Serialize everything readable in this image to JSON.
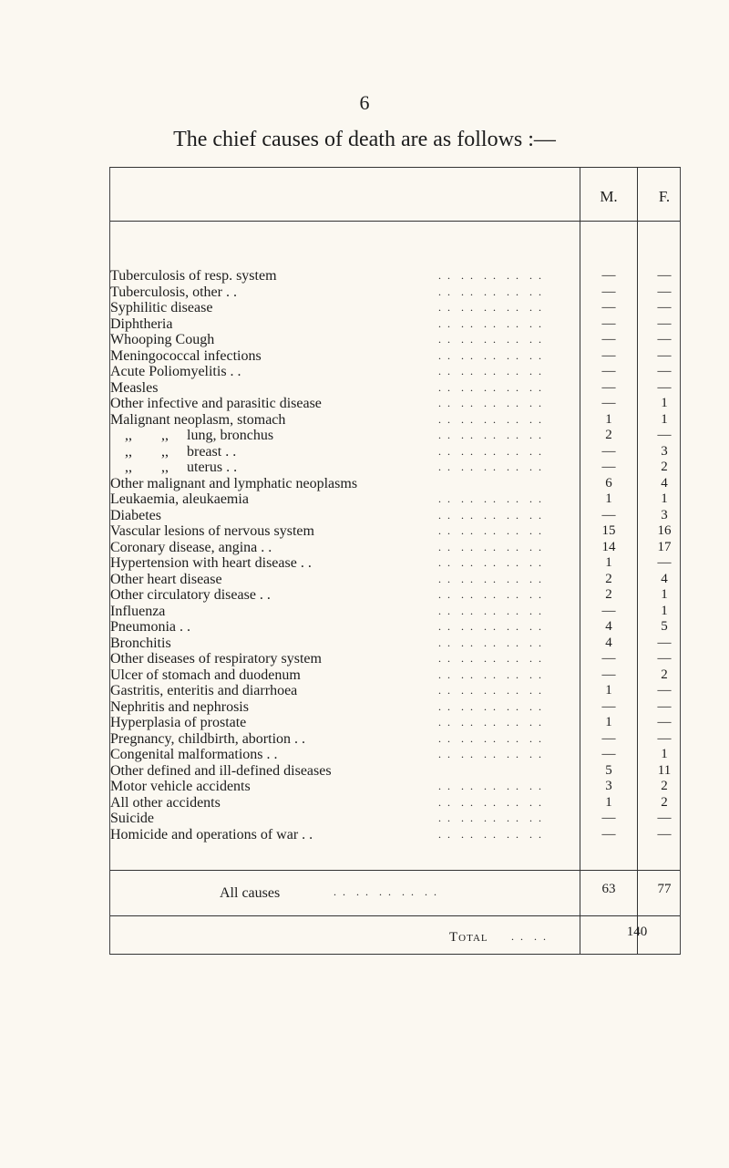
{
  "page_number": "6",
  "title": "The chief causes of death are as follows :—",
  "header": {
    "m": "M.",
    "f": "F."
  },
  "rows": [
    {
      "label": "Tuberculosis of resp. system",
      "m": "—",
      "f": "—"
    },
    {
      "label": "Tuberculosis, other . .",
      "m": "—",
      "f": "—"
    },
    {
      "label": "Syphilitic disease",
      "m": "—",
      "f": "—"
    },
    {
      "label": "Diphtheria",
      "m": "—",
      "f": "—"
    },
    {
      "label": "Whooping Cough",
      "m": "—",
      "f": "—"
    },
    {
      "label": "Meningococcal infections",
      "m": "—",
      "f": "—"
    },
    {
      "label": "Acute Poliomyelitis . .",
      "m": "—",
      "f": "—"
    },
    {
      "label": "Measles",
      "m": "—",
      "f": "—"
    },
    {
      "label": "Other infective and parasitic disease",
      "m": "—",
      "f": "1"
    },
    {
      "label": "Malignant neoplasm, stomach",
      "m": "1",
      "f": "1"
    },
    {
      "label": "    ,,        ,,     lung, bronchus",
      "m": "2",
      "f": "—"
    },
    {
      "label": "    ,,        ,,     breast . .",
      "m": "—",
      "f": "3"
    },
    {
      "label": "    ,,        ,,     uterus . .",
      "m": "—",
      "f": "2"
    },
    {
      "label": "Other malignant and lymphatic neoplasms",
      "m": "6",
      "f": "4"
    },
    {
      "label": "Leukaemia, aleukaemia",
      "m": "1",
      "f": "1"
    },
    {
      "label": "Diabetes",
      "m": "—",
      "f": "3"
    },
    {
      "label": "Vascular lesions of nervous system",
      "m": "15",
      "f": "16"
    },
    {
      "label": "Coronary disease, angina . .",
      "m": "14",
      "f": "17"
    },
    {
      "label": "Hypertension with heart disease . .",
      "m": "1",
      "f": "—"
    },
    {
      "label": "Other heart disease",
      "m": "2",
      "f": "4"
    },
    {
      "label": "Other circulatory disease . .",
      "m": "2",
      "f": "1"
    },
    {
      "label": "Influenza",
      "m": "—",
      "f": "1"
    },
    {
      "label": "Pneumonia . .",
      "m": "4",
      "f": "5"
    },
    {
      "label": "Bronchitis",
      "m": "4",
      "f": "—"
    },
    {
      "label": "Other diseases of respiratory system",
      "m": "—",
      "f": "—"
    },
    {
      "label": "Ulcer of stomach and duodenum",
      "m": "—",
      "f": "2"
    },
    {
      "label": "Gastritis, enteritis and diarrhoea",
      "m": "1",
      "f": "—"
    },
    {
      "label": "Nephritis and nephrosis",
      "m": "—",
      "f": "—"
    },
    {
      "label": "Hyperplasia of prostate",
      "m": "1",
      "f": "—"
    },
    {
      "label": "Pregnancy, childbirth, abortion . .",
      "m": "—",
      "f": "—"
    },
    {
      "label": "Congenital malformations . .",
      "m": "—",
      "f": "1"
    },
    {
      "label": "Other defined and ill-defined diseases",
      "m": "5",
      "f": "11"
    },
    {
      "label": "Motor vehicle accidents",
      "m": "3",
      "f": "2"
    },
    {
      "label": "All other accidents",
      "m": "1",
      "f": "2"
    },
    {
      "label": "Suicide",
      "m": "—",
      "f": "—"
    },
    {
      "label": "Homicide and operations of war . .",
      "m": "—",
      "f": "—"
    }
  ],
  "all_causes": {
    "label": "All causes",
    "m": "63",
    "f": "77"
  },
  "total": {
    "label": "Total",
    "value": "140"
  }
}
